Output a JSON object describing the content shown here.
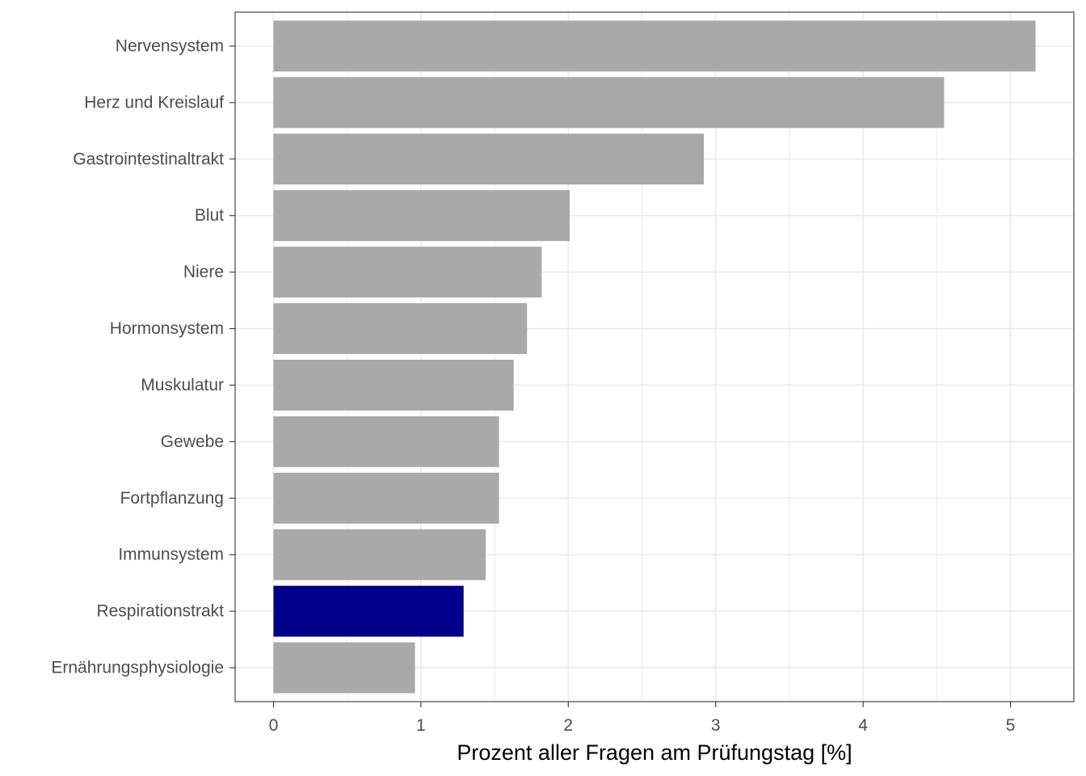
{
  "chart_data": {
    "type": "bar",
    "orientation": "horizontal",
    "categories": [
      "Nervensystem",
      "Herz und Kreislauf",
      "Gastrointestinaltrakt",
      "Blut",
      "Niere",
      "Hormonsystem",
      "Muskulatur",
      "Gewebe",
      "Fortpflanzung",
      "Immunsystem",
      "Respirationstrakt",
      "Ernährungsphysiologie"
    ],
    "values": [
      5.17,
      4.55,
      2.92,
      2.01,
      1.82,
      1.72,
      1.63,
      1.53,
      1.53,
      1.44,
      1.29,
      0.96
    ],
    "highlight_category": "Respirationstrakt",
    "colors": {
      "bar_default": "#a9a9a9",
      "bar_highlight": "#00008b",
      "grid": "#ebebeb",
      "panel_border": "#333333",
      "tick_text": "#4d4d4d",
      "title_text": "#000000"
    },
    "title": "",
    "xlabel": "Prozent aller Fragen am Prüfungstag [%]",
    "ylabel": "",
    "xlim": [
      -0.26,
      5.43
    ],
    "xticks": [
      0,
      1,
      2,
      3,
      4,
      5
    ],
    "xtick_labels": [
      "0",
      "1",
      "2",
      "3",
      "4",
      "5"
    ],
    "grid": true,
    "legend": "none"
  }
}
